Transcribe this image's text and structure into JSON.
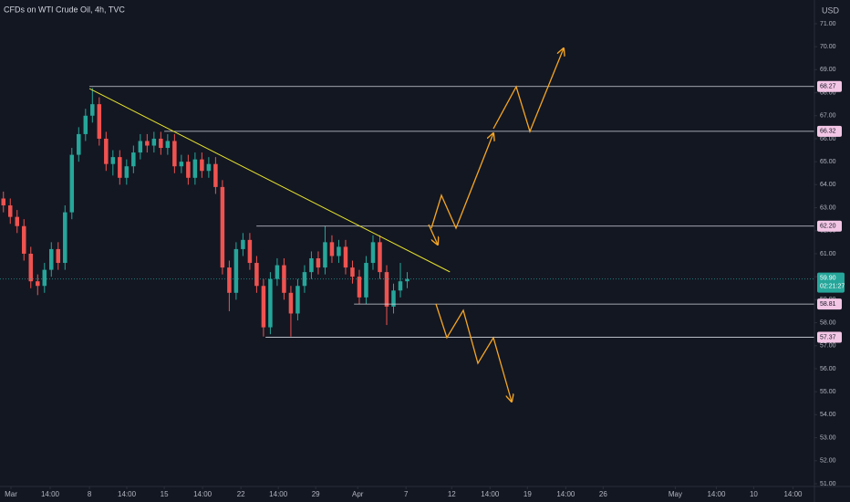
{
  "header": {
    "title": "CFDs on WTI Crude Oil, 4h, TVC"
  },
  "chart_data": {
    "type": "candlestick",
    "currency": "USD",
    "up_color": "#26a69a",
    "down_color": "#ef5350",
    "open": [
      63.4,
      63.1,
      62.6,
      62.2,
      61.0,
      59.8,
      59.6,
      60.3,
      61.2,
      60.6,
      62.8,
      65.3,
      66.2,
      67.0,
      67.5,
      66.0,
      64.9,
      65.2,
      64.3,
      64.8,
      65.4,
      65.9,
      65.7,
      66.0,
      65.6,
      65.9,
      64.8,
      65.0,
      64.3,
      65.1,
      64.6,
      64.9,
      63.9,
      60.4,
      59.3,
      61.2,
      61.6,
      60.6,
      59.6,
      57.8,
      59.9,
      60.5,
      59.3,
      58.4,
      59.6,
      60.2,
      60.8,
      60.4,
      61.5,
      60.9,
      61.3,
      60.4,
      60.0,
      59.1,
      60.6,
      61.5,
      60.2,
      58.7,
      59.4,
      59.8
    ],
    "high": [
      63.7,
      63.4,
      62.9,
      62.5,
      61.3,
      60.1,
      60.6,
      61.5,
      61.5,
      63.1,
      65.6,
      66.5,
      67.3,
      68.2,
      67.8,
      66.3,
      65.5,
      65.5,
      65.1,
      65.7,
      66.2,
      66.2,
      66.3,
      66.3,
      66.2,
      66.2,
      65.3,
      65.3,
      65.4,
      65.4,
      65.2,
      65.2,
      64.2,
      60.7,
      61.5,
      61.9,
      61.9,
      60.9,
      59.9,
      60.2,
      60.8,
      60.8,
      59.6,
      59.9,
      60.5,
      61.1,
      61.1,
      62.2,
      61.8,
      61.6,
      61.6,
      60.7,
      60.3,
      60.9,
      61.8,
      61.8,
      60.5,
      59.7,
      60.6,
      60.2
    ],
    "low": [
      62.8,
      62.3,
      61.9,
      60.7,
      59.5,
      59.2,
      59.3,
      60.0,
      60.3,
      60.3,
      62.5,
      65.0,
      65.9,
      66.7,
      65.7,
      64.6,
      64.4,
      64.0,
      64.0,
      64.5,
      65.1,
      65.4,
      65.4,
      65.3,
      65.3,
      64.5,
      64.5,
      64.0,
      64.0,
      64.3,
      64.3,
      63.6,
      60.1,
      58.5,
      59.0,
      60.9,
      60.3,
      59.3,
      57.4,
      57.5,
      59.6,
      59.0,
      57.4,
      58.1,
      59.3,
      59.9,
      60.1,
      60.1,
      60.6,
      60.6,
      60.1,
      59.7,
      58.8,
      58.8,
      60.3,
      59.9,
      57.9,
      58.4,
      59.1,
      59.5
    ],
    "close": [
      63.1,
      62.6,
      62.2,
      61.0,
      59.8,
      59.6,
      60.3,
      61.2,
      60.6,
      62.8,
      65.3,
      66.2,
      67.0,
      67.5,
      66.0,
      64.9,
      65.2,
      64.3,
      64.8,
      65.4,
      65.9,
      65.7,
      66.0,
      65.6,
      65.9,
      64.8,
      65.0,
      64.3,
      65.1,
      64.6,
      64.9,
      63.9,
      60.4,
      59.3,
      61.2,
      61.6,
      60.6,
      59.6,
      57.8,
      59.9,
      60.5,
      59.3,
      58.4,
      59.6,
      60.2,
      60.8,
      60.4,
      61.5,
      60.9,
      61.3,
      60.4,
      60.0,
      59.1,
      60.6,
      61.5,
      60.2,
      58.7,
      59.4,
      59.8,
      59.9
    ],
    "xlim": [
      0,
      119
    ],
    "ylim": [
      50.88,
      72.03
    ],
    "xticks": [
      {
        "value": 1.6,
        "label": "Mar"
      },
      {
        "value": 7.33,
        "label": "14:00"
      },
      {
        "value": 13.07,
        "label": "8"
      },
      {
        "value": 18.53,
        "label": "14:00"
      },
      {
        "value": 24,
        "label": "15"
      },
      {
        "value": 29.6,
        "label": "14:00"
      },
      {
        "value": 35.2,
        "label": "22"
      },
      {
        "value": 40.67,
        "label": "14:00"
      },
      {
        "value": 46.13,
        "label": "29"
      },
      {
        "value": 52.27,
        "label": "Apr"
      },
      {
        "value": 59.33,
        "label": "7"
      },
      {
        "value": 66,
        "label": "12"
      },
      {
        "value": 71.6,
        "label": "14:00"
      },
      {
        "value": 77.07,
        "label": "19"
      },
      {
        "value": 82.67,
        "label": "14:00"
      },
      {
        "value": 88.13,
        "label": "26"
      },
      {
        "value": 98.67,
        "label": "May"
      },
      {
        "value": 104.67,
        "label": "14:00"
      },
      {
        "value": 110.13,
        "label": "10"
      },
      {
        "value": 115.87,
        "label": "14:00"
      }
    ],
    "yticks": [
      {
        "value": 51,
        "label": "51.00"
      },
      {
        "value": 52,
        "label": "52.00"
      },
      {
        "value": 53,
        "label": "53.00"
      },
      {
        "value": 54,
        "label": "54.00"
      },
      {
        "value": 55,
        "label": "55.00"
      },
      {
        "value": 56,
        "label": "56.00"
      },
      {
        "value": 57,
        "label": "57.00"
      },
      {
        "value": 58,
        "label": "58.00"
      },
      {
        "value": 59,
        "label": "59.00"
      },
      {
        "value": 60,
        "label": "60.00"
      },
      {
        "value": 61,
        "label": "61.00"
      },
      {
        "value": 62,
        "label": "62.00"
      },
      {
        "value": 63,
        "label": "63.00"
      },
      {
        "value": 64,
        "label": "64.00"
      },
      {
        "value": 65,
        "label": "65.00"
      },
      {
        "value": 66,
        "label": "66.00"
      },
      {
        "value": 67,
        "label": "67.00"
      },
      {
        "value": 68,
        "label": "68.00"
      },
      {
        "value": 69,
        "label": "69.00"
      },
      {
        "value": 70,
        "label": "70.00"
      },
      {
        "value": 71,
        "label": "71.00"
      }
    ],
    "levels": [
      {
        "value": 68.27,
        "label": "68.27",
        "start": 13.07
      },
      {
        "value": 66.32,
        "label": "66.32",
        "start": 24
      },
      {
        "value": 62.2,
        "label": "62.20",
        "start": 37.47
      },
      {
        "value": 58.81,
        "label": "58.81",
        "start": 51.73
      },
      {
        "value": 57.37,
        "label": "57.37",
        "start": 38.8
      }
    ],
    "trendline": {
      "x": [
        13.07,
        65.73
      ],
      "y": [
        68.18,
        60.21
      ]
    },
    "current_price": {
      "value": 59.9,
      "label": "59.90",
      "countdown": "02:21:27"
    }
  }
}
